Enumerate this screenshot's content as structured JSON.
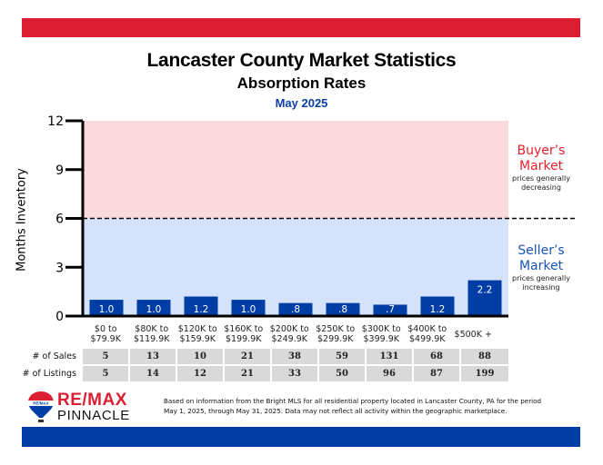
{
  "header": {
    "title": "Lancaster County Market Statistics",
    "subtitle": "Absorption Rates",
    "period": "May 2025"
  },
  "colors": {
    "top_band": "#dc1e32",
    "bottom_band": "#003da5",
    "buyer_zone": "#fad9dc",
    "seller_zone": "#d4e2fb",
    "bar": "#003da5",
    "buyer_text": "#e8202c",
    "seller_text": "#1a55b5"
  },
  "chart_data": {
    "type": "bar",
    "title": "Absorption Rates",
    "xlabel": "",
    "ylabel": "Months Inventory",
    "ylim": [
      0,
      12
    ],
    "yticks": [
      0,
      3,
      6,
      9,
      12
    ],
    "grid": false,
    "threshold": {
      "value": 6,
      "style": "dashed"
    },
    "categories": [
      "$0 to\n$79.9K",
      "$80K to\n$119.9K",
      "$120K to\n$159.9K",
      "$160K to\n$199.9K",
      "$200K to\n$249.9K",
      "$250K to\n$299.9K",
      "$300K to\n$399.9K",
      "$400K to\n$499.9K",
      "$500K +"
    ],
    "values": [
      1.0,
      1.0,
      1.2,
      1.0,
      0.8,
      0.8,
      0.7,
      1.2,
      2.2
    ],
    "data_labels": [
      "1.0",
      "1.0",
      "1.2",
      "1.0",
      ".8",
      ".8",
      ".7",
      "1.2",
      "2.2"
    ],
    "zones": [
      {
        "name": "Buyer's Market",
        "range": [
          6,
          12
        ],
        "note": "prices generally decreasing"
      },
      {
        "name": "Seller's Market",
        "range": [
          0,
          6
        ],
        "note": "prices generally increasing"
      }
    ]
  },
  "zones": {
    "buyer": {
      "line1": "Buyer’s",
      "line2": "Market",
      "note1": "prices generally",
      "note2": "decreasing"
    },
    "seller": {
      "line1": "Seller’s",
      "line2": "Market",
      "note1": "prices generally",
      "note2": "increasing"
    }
  },
  "table": {
    "rows": [
      {
        "label": "# of Sales",
        "values": [
          "5",
          "13",
          "10",
          "21",
          "38",
          "59",
          "131",
          "68",
          "88"
        ]
      },
      {
        "label": "# of Listings",
        "values": [
          "5",
          "14",
          "12",
          "21",
          "33",
          "50",
          "96",
          "87",
          "199"
        ]
      }
    ]
  },
  "footer": {
    "logo_line1": "RE/MAX",
    "logo_line2": "PINNACLE",
    "balloon_text": "RE/MAX",
    "note_line1": "Based on information from the Bright MLS for all residential property located in Lancaster County, PA for the period",
    "note_line2": "May 1, 2025, through May 31, 2025.  Data may not reflect all activity within the geographic marketplace."
  }
}
